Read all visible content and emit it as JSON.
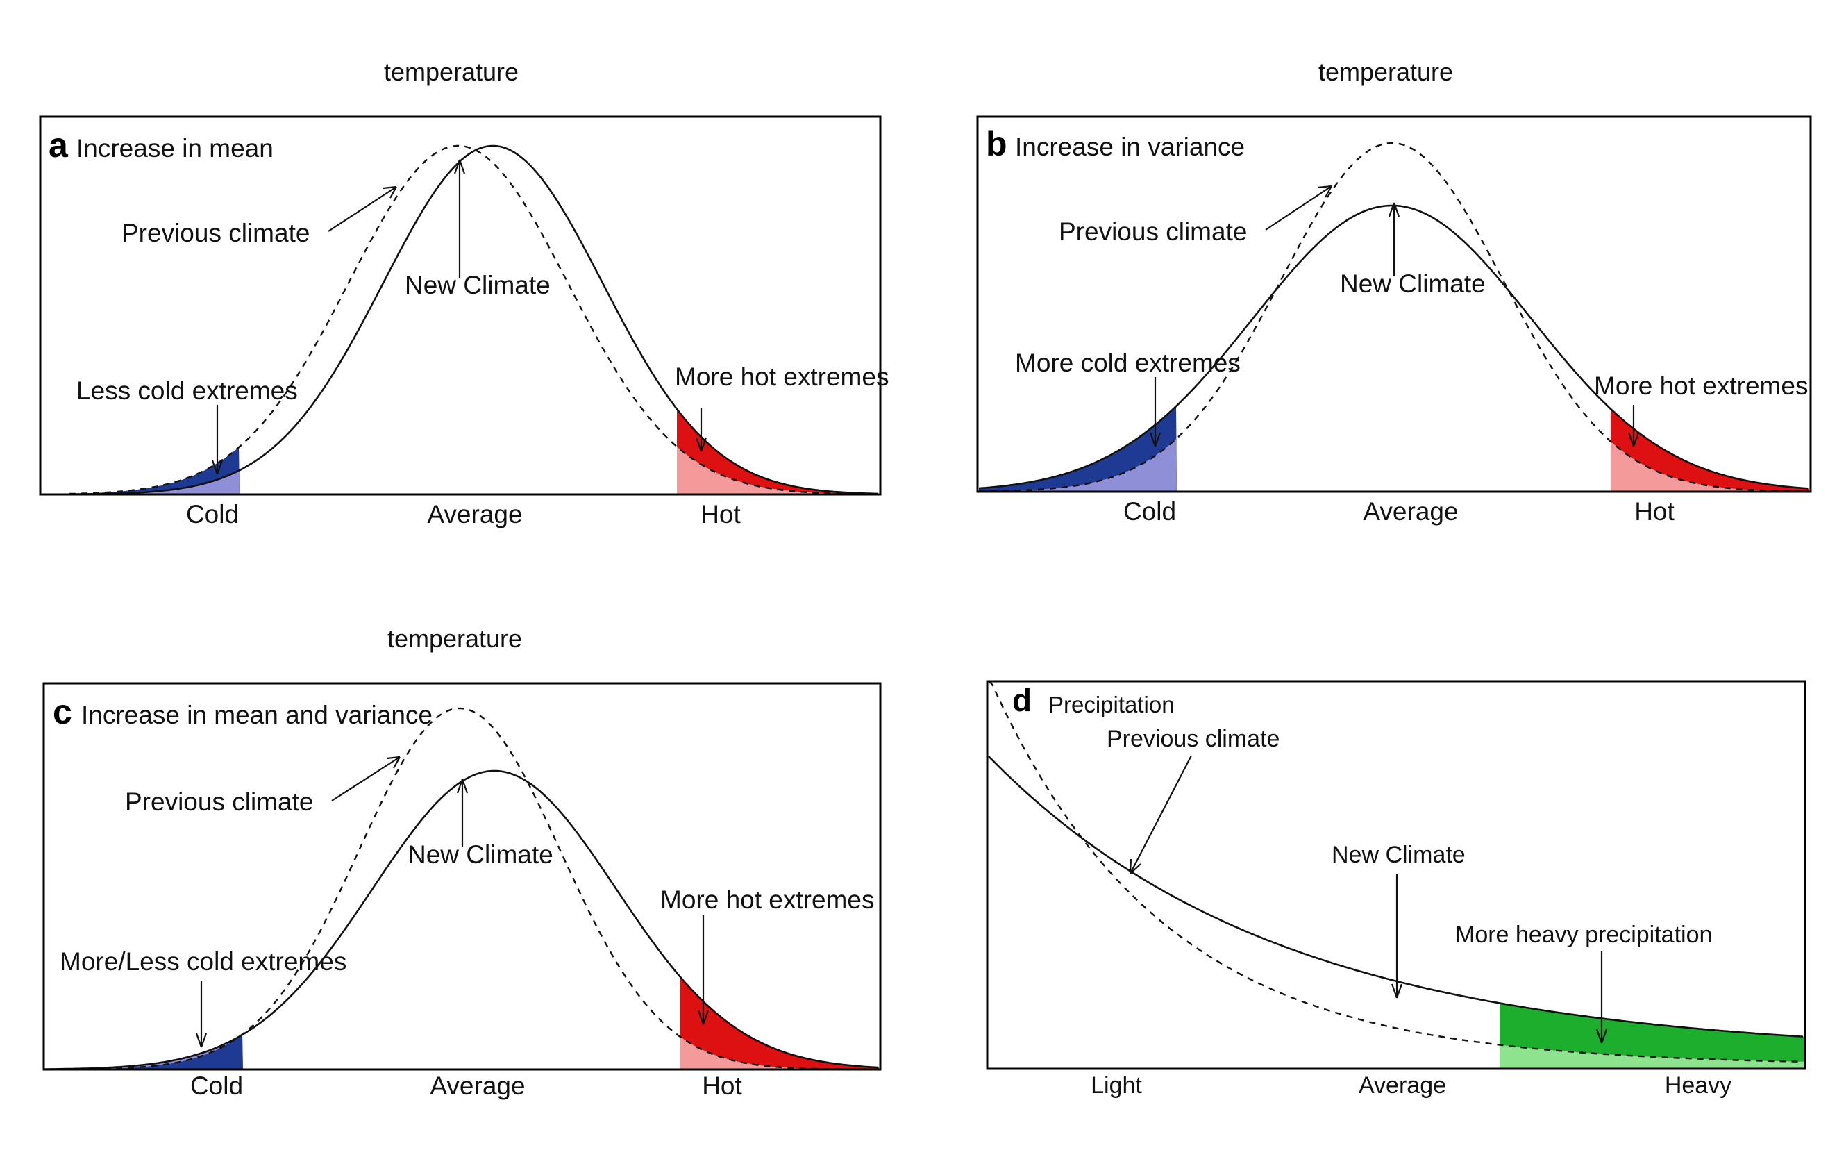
{
  "colors": {
    "cold_dark": "#1f3a93",
    "cold_light": "#8f8fd8",
    "hot_dark": "#dd1111",
    "hot_light": "#f49a9a",
    "heavy_dark": "#1cae2c",
    "heavy_light": "#8ee38e",
    "curve": "#111111"
  },
  "panels": {
    "a": {
      "top_label": "temperature",
      "letter": "a",
      "title": "Increase in mean",
      "previous_label": "Previous climate",
      "new_label": "New Climate",
      "cold_label": "Less cold extremes",
      "hot_label": "More hot extremes",
      "ticks": [
        "Cold",
        "Average",
        "Hot"
      ]
    },
    "b": {
      "top_label": "temperature",
      "letter": "b",
      "title": "Increase in variance",
      "previous_label": "Previous climate",
      "new_label": "New Climate",
      "cold_label": "More cold extremes",
      "hot_label": "More hot extremes",
      "ticks": [
        "Cold",
        "Average",
        "Hot"
      ]
    },
    "c": {
      "top_label": "temperature",
      "letter": "c",
      "title": "Increase in mean and variance",
      "previous_label": "Previous climate",
      "new_label": "New Climate",
      "cold_label": "More/Less cold extremes",
      "hot_label": "More hot extremes",
      "ticks": [
        "Cold",
        "Average",
        "Hot"
      ]
    },
    "d": {
      "letter": "d",
      "title": "Precipitation",
      "previous_label": "Previous climate",
      "new_label": "New Climate",
      "heavy_label": "More heavy precipitation",
      "ticks": [
        "Light",
        "Average",
        "Heavy"
      ]
    }
  }
}
